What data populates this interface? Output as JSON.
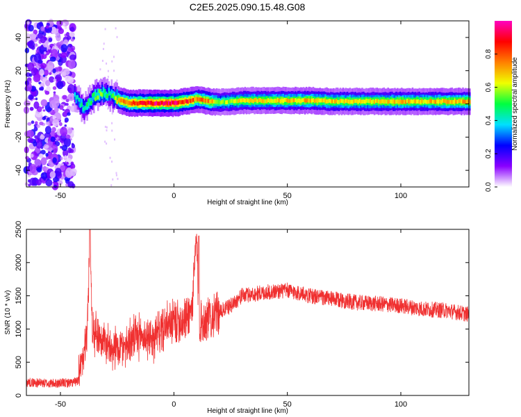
{
  "title": "C2E5.2025.090.15.48.G08",
  "chart_data": [
    {
      "type": "heatmap",
      "xlabel": "Height of straight line (km)",
      "ylabel": "Frequency (Hz)",
      "xlim": [
        -65,
        130
      ],
      "ylim": [
        -50,
        50
      ],
      "x_ticks": [
        -50,
        0,
        50,
        100
      ],
      "y_ticks": [
        -40,
        -20,
        0,
        20,
        40
      ],
      "colorbar": {
        "label": "Normalized spectral amplitude",
        "range": [
          0,
          1
        ],
        "ticks": [
          0.0,
          0.2,
          0.4,
          0.6,
          0.8
        ],
        "colors": [
          "#ffffff",
          "#8a00ff",
          "#0000ff",
          "#00e0ff",
          "#00ff40",
          "#f0ff00",
          "#ff8000",
          "#ff0000",
          "#ff00c0"
        ]
      },
      "ridge": {
        "x": [
          -44,
          -40,
          -36,
          -32,
          -28,
          -24,
          -20,
          -15,
          -10,
          -5,
          0,
          5,
          10,
          15,
          20,
          25,
          30,
          40,
          50,
          60,
          70,
          80,
          90,
          100,
          110,
          120,
          130
        ],
        "frequency": [
          5,
          -3,
          4,
          7,
          5,
          2,
          0.5,
          0.5,
          0.5,
          0.5,
          0.5,
          1.5,
          3,
          1.5,
          1,
          1.5,
          2,
          2,
          2,
          2,
          1.5,
          1.5,
          1.5,
          1.5,
          1.5,
          1.5,
          1.5
        ],
        "amplitude": [
          0.4,
          0.45,
          0.5,
          0.55,
          0.45,
          0.75,
          0.8,
          0.85,
          0.9,
          0.9,
          0.9,
          0.85,
          0.75,
          0.75,
          0.55,
          0.6,
          0.65,
          0.65,
          0.68,
          0.68,
          0.67,
          0.65,
          0.65,
          0.68,
          0.66,
          0.7,
          0.7
        ]
      }
    },
    {
      "type": "line",
      "xlabel": "Height of straight line (km)",
      "ylabel": "SNR (10 * v/v)",
      "xlim": [
        -65,
        130
      ],
      "ylim": [
        0,
        2500
      ],
      "x_ticks": [
        -50,
        0,
        50,
        100
      ],
      "y_ticks": [
        0,
        500,
        1000,
        1500,
        2000,
        2500
      ],
      "color": "#f03030",
      "series": [
        {
          "x": [
            -65,
            -55,
            -45,
            -42,
            -40,
            -38,
            -37,
            -36,
            -33,
            -30,
            -25,
            -20,
            -15,
            -10,
            -5,
            0,
            5,
            8,
            10,
            11,
            15,
            20,
            25,
            30,
            40,
            50,
            60,
            70,
            80,
            90,
            100,
            110,
            120,
            130
          ],
          "values": [
            200,
            180,
            190,
            220,
            600,
            1100,
            2500,
            1000,
            900,
            800,
            700,
            800,
            900,
            850,
            1000,
            1100,
            1150,
            1300,
            2400,
            1100,
            1150,
            1250,
            1350,
            1500,
            1550,
            1580,
            1500,
            1450,
            1400,
            1380,
            1350,
            1300,
            1280,
            1220
          ]
        }
      ]
    }
  ]
}
